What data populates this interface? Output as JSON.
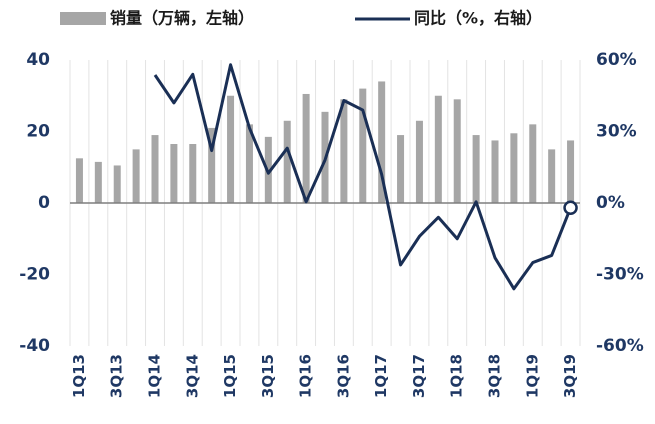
{
  "chart_data": {
    "type": "bar-line",
    "categories": [
      "1Q13",
      null,
      "3Q13",
      null,
      "1Q14",
      null,
      "3Q14",
      null,
      "1Q15",
      null,
      "3Q15",
      null,
      "1Q16",
      null,
      "3Q16",
      null,
      "1Q17",
      null,
      "3Q17",
      null,
      "1Q18",
      null,
      "3Q18",
      null,
      "1Q19",
      null,
      "3Q19"
    ],
    "series": [
      {
        "name": "销量（万辆，左轴）",
        "type": "bar",
        "color": "#a6a6a6",
        "values": [
          12.5,
          11.5,
          10.5,
          15,
          19,
          16.5,
          16.5,
          21,
          30,
          22,
          18.5,
          23,
          30.5,
          25.5,
          29,
          32,
          34,
          19,
          23,
          30,
          29,
          19,
          17.5,
          19.5,
          22,
          15,
          17.5
        ]
      },
      {
        "name": "同比（%，右轴）",
        "type": "line",
        "axis": "y2",
        "color": "#1a2f55",
        "values": [
          null,
          null,
          null,
          null,
          53.7,
          42,
          54,
          22,
          58,
          31.5,
          12.5,
          23,
          0.5,
          18,
          43,
          39,
          12,
          -26,
          -14,
          -6,
          -15,
          0.5,
          -23,
          -36,
          -25,
          -22,
          -2
        ]
      }
    ],
    "ylim": [
      -40,
      40
    ],
    "yticks": [
      -40,
      -20,
      0,
      20,
      40
    ],
    "y2lim": [
      -60,
      60
    ],
    "y2ticks": [
      {
        "value": -60,
        "label": "-60%"
      },
      {
        "value": -30,
        "label": "-30%"
      },
      {
        "value": 0,
        "label": "0%"
      },
      {
        "value": 30,
        "label": "30%"
      },
      {
        "value": 60,
        "label": "60%"
      }
    ],
    "grid": "x"
  }
}
